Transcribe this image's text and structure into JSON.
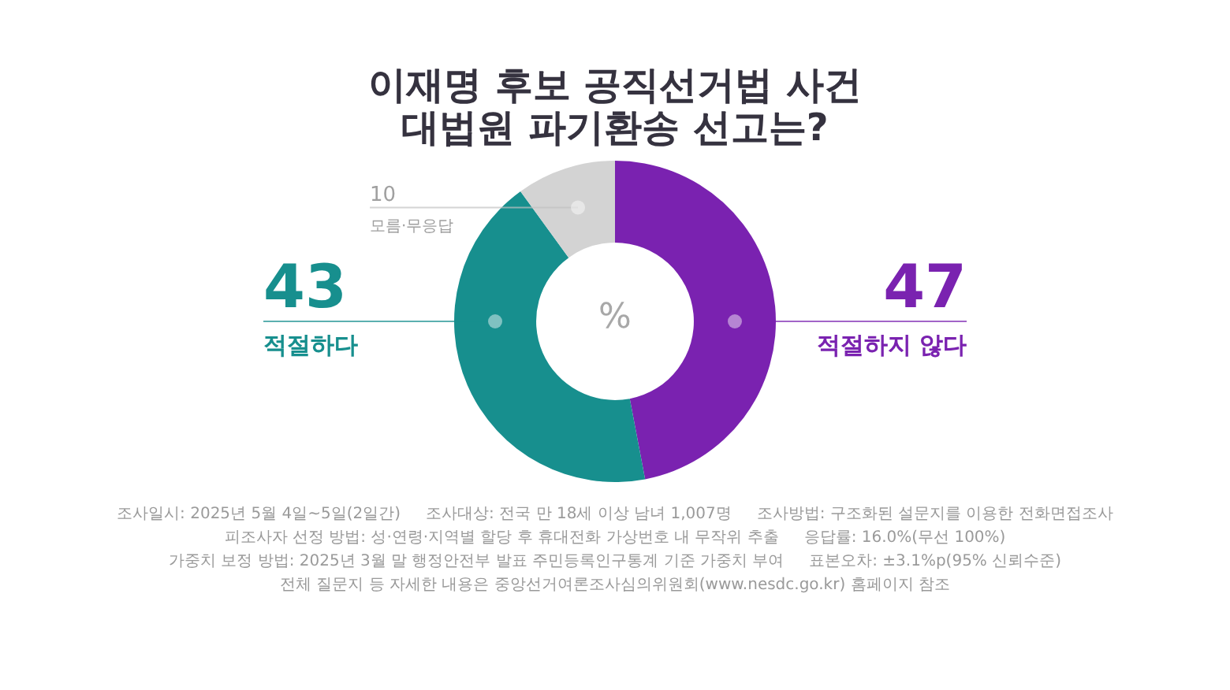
{
  "chart_data": {
    "type": "donut",
    "title": "이재명 후보 공직선거법 사건\n대법원 파기환송 선고는?",
    "categories": [
      "적절하지 않다",
      "적절하다",
      "모름·무응답"
    ],
    "values": [
      47,
      43,
      10
    ],
    "colors": [
      "#7a22b0",
      "#178f8e",
      "#d3d3d3"
    ],
    "data_labels": true,
    "annotations": [
      "%",
      "조사일시: 2025년 5월 4일~5일(2일간)",
      "조사대상: 전국 만 18세 이상 남녀 1,007명",
      "조사방법: 구조화된 설문지를 이용한 전화면접조사",
      "피조사자 선정 방법: 성·연령·지역별 할당 후 휴대전화 가상번호 내 무작위 추출",
      "응답률: 16.0%(무선 100%)",
      "가중치 보정 방법: 2025년 3월 말 행정안전부 발표 주민등록인구통계 기준 가중치 부여",
      "표본오차: ±3.1%p(95% 신뢰수준)",
      "전체 질문지 등 자세한 내용은 중앙선거여론조사심의위원회(www.nesdc.go.kr) 홈페이지 참조"
    ]
  }
}
